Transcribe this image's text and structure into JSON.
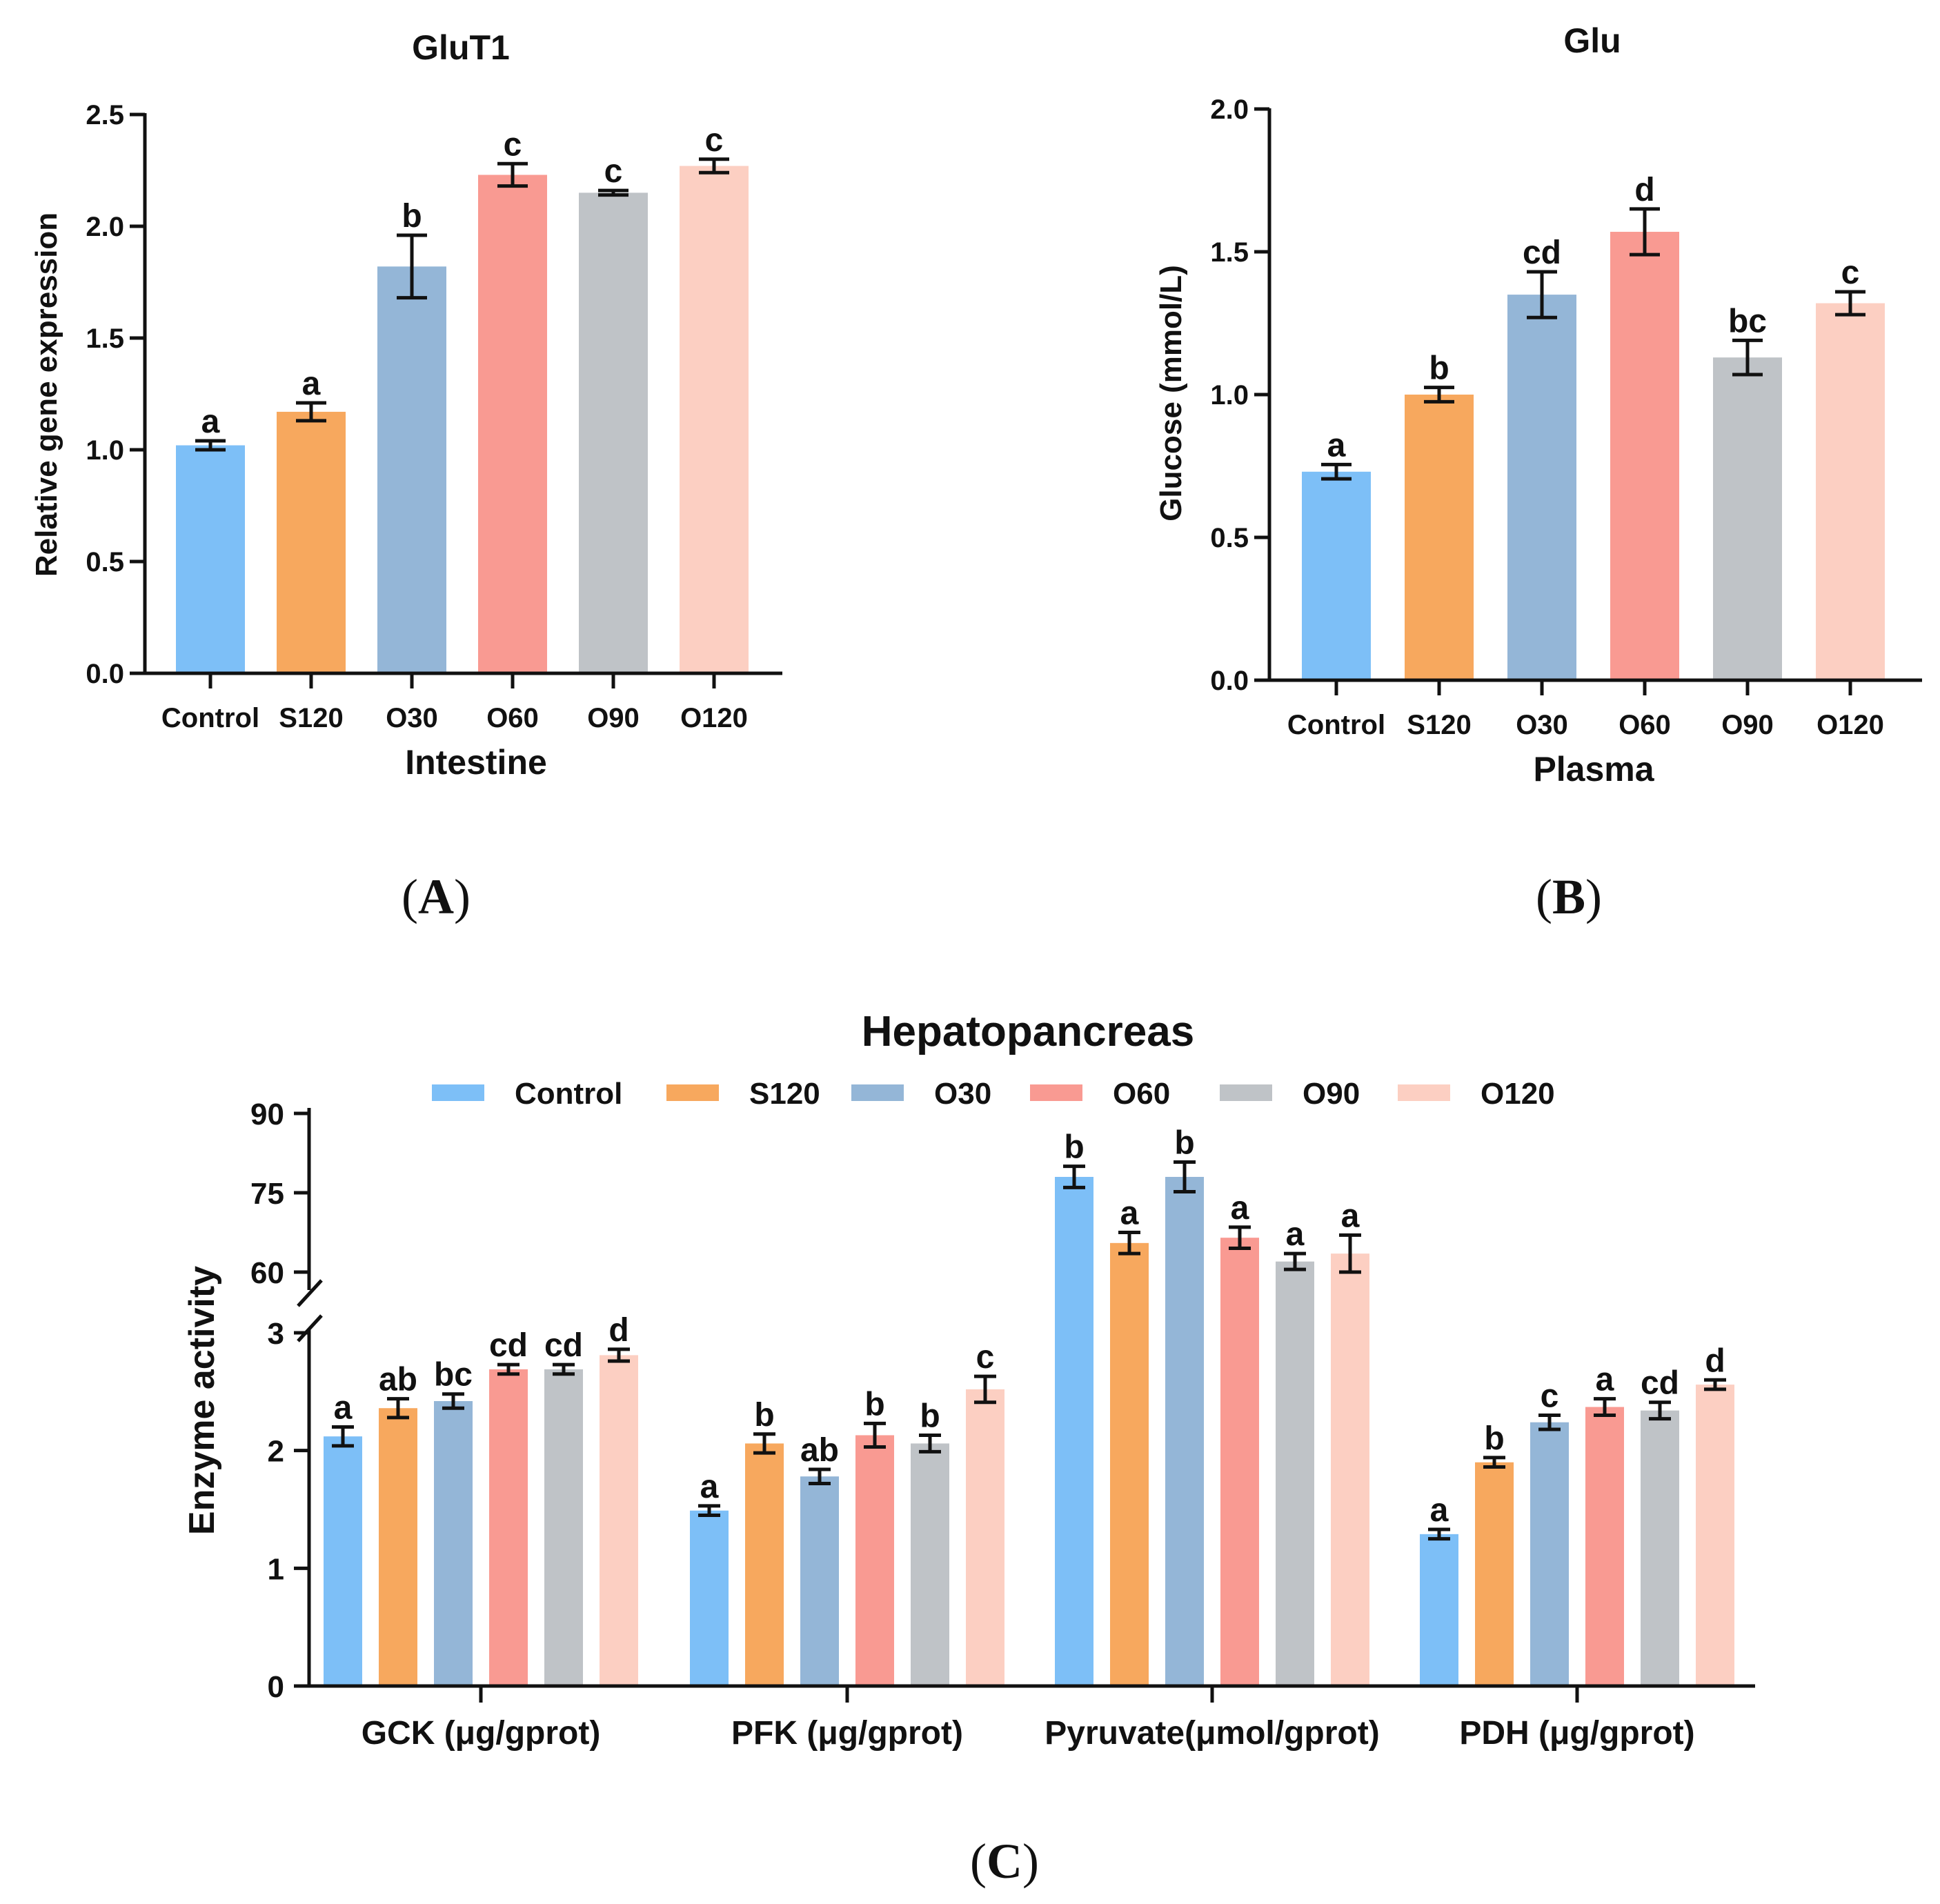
{
  "colors": {
    "Control": "#7dbff7",
    "S120": "#f7a85e",
    "O30": "#94b6d7",
    "O60": "#f99a92",
    "O90": "#bfc3c7",
    "O120": "#fccfc2"
  },
  "panel_labels": {
    "A": "A",
    "B": "B",
    "C": "C",
    "open": "(",
    "close": ")"
  },
  "chart_data": [
    {
      "id": "A",
      "type": "bar",
      "title": "GluT1",
      "xlabel": "Intestine",
      "ylabel": "Relative gene expression",
      "ylim": [
        0,
        2.5
      ],
      "yticks": [
        "0.0",
        "0.5",
        "1.0",
        "1.5",
        "2.0",
        "2.5"
      ],
      "categories": [
        "Control",
        "S120",
        "O30",
        "O60",
        "O90",
        "O120"
      ],
      "values": [
        1.02,
        1.17,
        1.82,
        2.23,
        2.15,
        2.27
      ],
      "errors": [
        0.02,
        0.04,
        0.14,
        0.05,
        0.01,
        0.03
      ],
      "labels": [
        "a",
        "a",
        "b",
        "c",
        "c",
        "c"
      ]
    },
    {
      "id": "B",
      "type": "bar",
      "title": "Glu",
      "xlabel": "Plasma",
      "ylabel": "Glucose (mmol/L)",
      "ylim": [
        0,
        2.0
      ],
      "yticks": [
        "0.0",
        "0.5",
        "1.0",
        "1.5",
        "2.0"
      ],
      "categories": [
        "Control",
        "S120",
        "O30",
        "O60",
        "O90",
        "O120"
      ],
      "values": [
        0.73,
        1.0,
        1.35,
        1.57,
        1.13,
        1.32
      ],
      "errors": [
        0.025,
        0.025,
        0.08,
        0.08,
        0.06,
        0.04
      ],
      "labels": [
        "a",
        "b",
        "cd",
        "d",
        "bc",
        "c"
      ]
    },
    {
      "id": "C",
      "type": "bar",
      "title": "Hepatopancreas",
      "ylabel": "Enzyme activity",
      "legend_position": "top",
      "y_break": true,
      "lower_ylim": [
        0,
        3
      ],
      "upper_ylim": [
        55,
        90
      ],
      "lower_yticks": [
        "0",
        "1",
        "2",
        "3"
      ],
      "upper_yticks": [
        "60",
        "75",
        "90"
      ],
      "categories": [
        "GCK (μg/gprot)",
        "PFK (μg/gprot)",
        "Pyruvate(μmol/gprot)",
        "PDH (μg/gprot)"
      ],
      "series": [
        {
          "name": "Control",
          "values": [
            2.12,
            1.49,
            78,
            1.29
          ],
          "errors": [
            0.08,
            0.04,
            2.0,
            0.04
          ],
          "labels": [
            "a",
            "a",
            "b",
            "a"
          ]
        },
        {
          "name": "S120",
          "values": [
            2.36,
            2.06,
            65.5,
            1.9
          ],
          "errors": [
            0.08,
            0.08,
            2.0,
            0.04
          ],
          "labels": [
            "ab",
            "b",
            "a",
            "b"
          ]
        },
        {
          "name": "O30",
          "values": [
            2.42,
            1.78,
            78,
            2.24
          ],
          "errors": [
            0.06,
            0.06,
            2.8,
            0.06
          ],
          "labels": [
            "bc",
            "ab",
            "b",
            "c"
          ]
        },
        {
          "name": "O60",
          "values": [
            2.69,
            2.13,
            66.5,
            2.37
          ],
          "errors": [
            0.04,
            0.1,
            2.0,
            0.07
          ],
          "labels": [
            "cd",
            "b",
            "a",
            "a"
          ]
        },
        {
          "name": "O90",
          "values": [
            2.69,
            2.06,
            62,
            2.34
          ],
          "errors": [
            0.04,
            0.07,
            1.5,
            0.07
          ],
          "labels": [
            "cd",
            "b",
            "a",
            "cd"
          ]
        },
        {
          "name": "O120",
          "values": [
            2.81,
            2.52,
            63.5,
            2.56
          ],
          "errors": [
            0.05,
            0.11,
            3.5,
            0.04
          ],
          "labels": [
            "d",
            "c",
            "a",
            "d"
          ]
        }
      ]
    }
  ]
}
